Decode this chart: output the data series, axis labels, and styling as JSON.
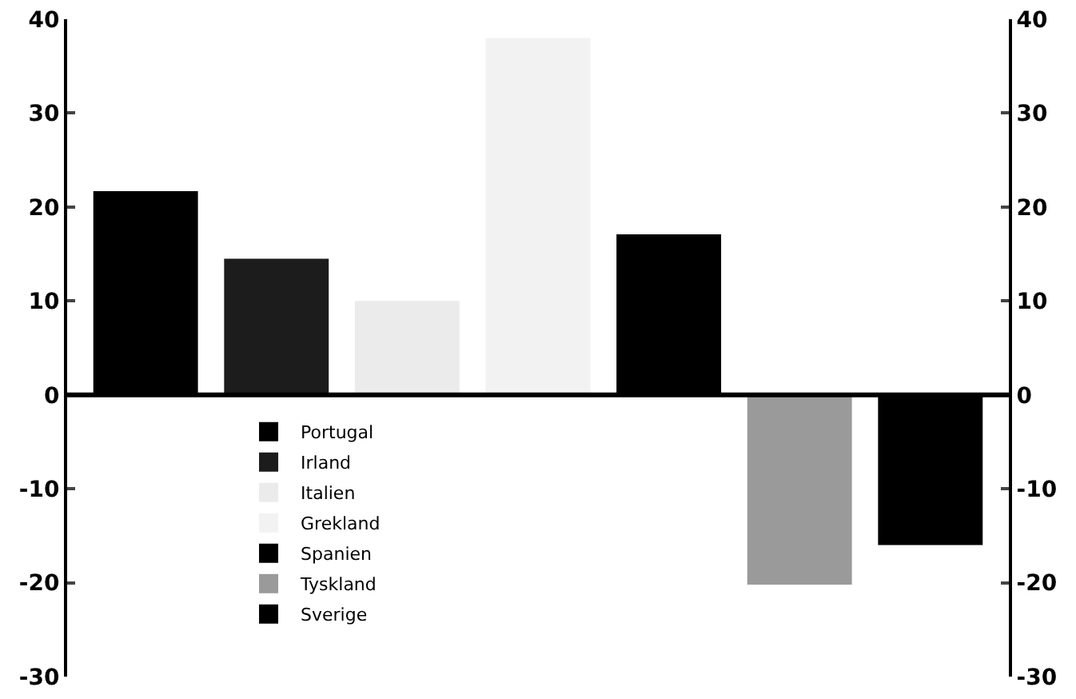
{
  "chart_data": {
    "type": "bar",
    "categories": [
      null,
      null,
      null,
      null,
      null,
      null,
      null
    ],
    "series": [
      {
        "name": "Portugal",
        "color": "#000000",
        "values": [
          21.7,
          null,
          null,
          null,
          null,
          null,
          null
        ]
      },
      {
        "name": "Irland",
        "color": "#1c1c1c",
        "values": [
          null,
          14.5,
          null,
          null,
          null,
          null,
          null
        ]
      },
      {
        "name": "Italien",
        "color": "#ebebeb",
        "values": [
          null,
          null,
          10,
          null,
          null,
          null,
          null
        ]
      },
      {
        "name": "Grekland",
        "color": "#f2f2f2",
        "values": [
          null,
          null,
          null,
          38,
          null,
          null,
          null
        ]
      },
      {
        "name": "Spanien",
        "color": "#000000",
        "values": [
          null,
          null,
          null,
          null,
          17.1,
          null,
          null
        ]
      },
      {
        "name": "Tyskland",
        "color": "#9a9a9a",
        "values": [
          null,
          null,
          null,
          null,
          null,
          -20.2,
          null
        ]
      },
      {
        "name": "Sverige",
        "color": "#000000",
        "values": [
          null,
          null,
          null,
          null,
          null,
          null,
          -16
        ]
      }
    ],
    "ylim": [
      -30,
      40
    ],
    "yticks": [
      -30,
      -20,
      -10,
      0,
      10,
      20,
      30,
      40
    ],
    "y2lim": [
      -30,
      40
    ],
    "y2ticks": [
      -30,
      -20,
      -10,
      0,
      10,
      20,
      30,
      40
    ],
    "ref_lines": [
      {
        "axis": "y",
        "value": 0,
        "color": "#000000"
      }
    ],
    "tick_labels": "y",
    "grid": false,
    "legend": "bottom left"
  }
}
